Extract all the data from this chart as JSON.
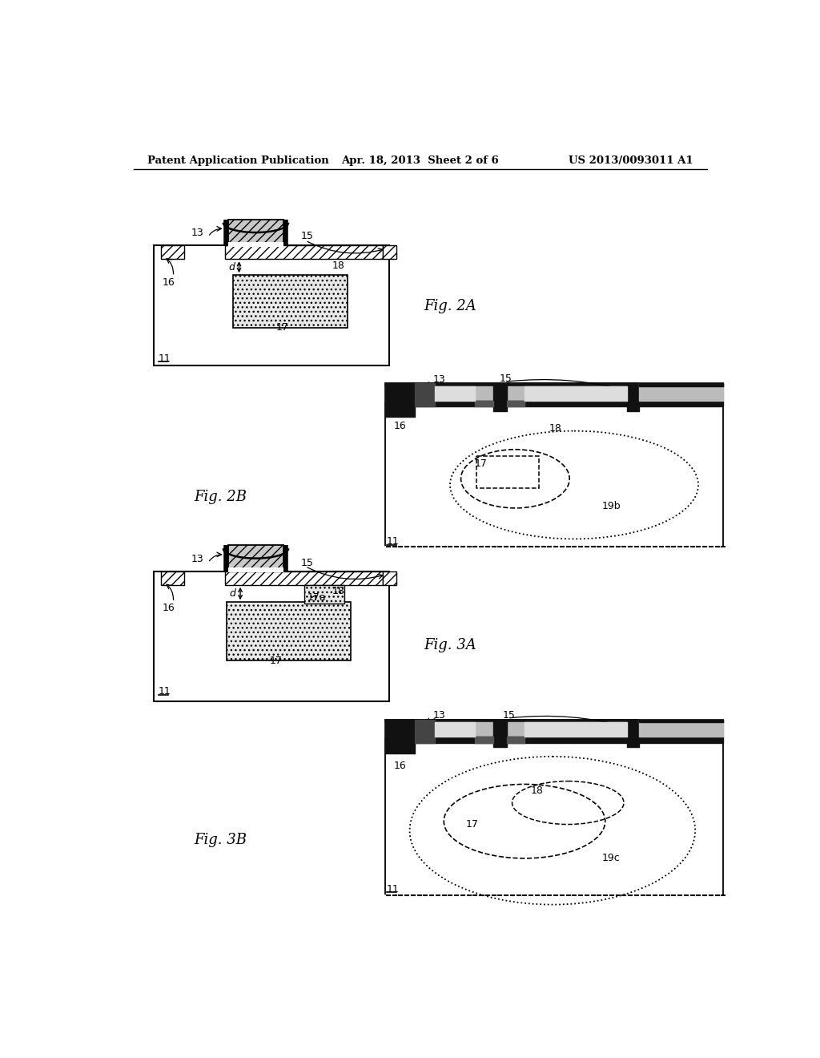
{
  "bg_color": "#ffffff",
  "header_left": "Patent Application Publication",
  "header_center": "Apr. 18, 2013  Sheet 2 of 6",
  "header_right": "US 2013/0093011 A1",
  "fig2A_label": "Fig. 2A",
  "fig2B_label": "Fig. 2B",
  "fig3A_label": "Fig. 3A",
  "fig3B_label": "Fig. 3B"
}
